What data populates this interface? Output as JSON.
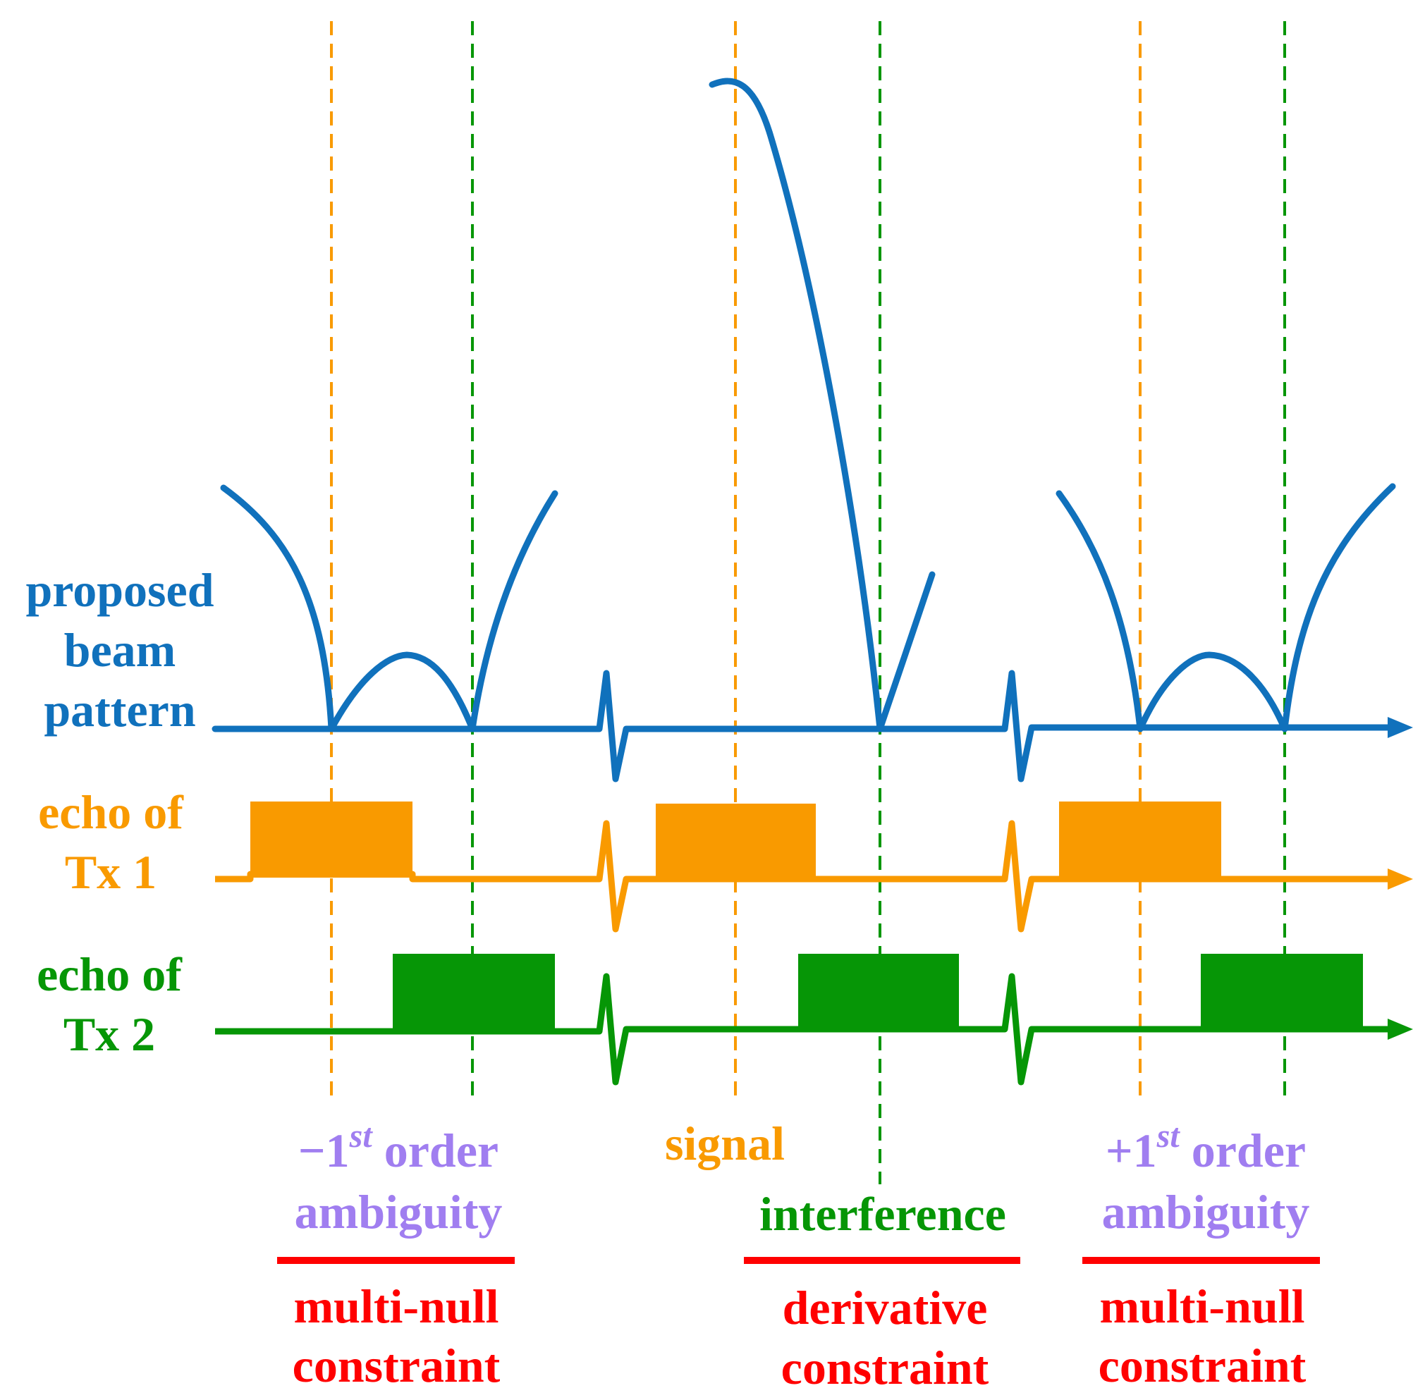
{
  "colors": {
    "beam": "#1071bc",
    "tx1": "#f99a00",
    "tx2": "#069606",
    "ambiguity": "#a07ef0",
    "constraint": "#ff0000",
    "background": "#ffffff"
  },
  "rows": {
    "beam_label": [
      "proposed",
      "beam",
      "pattern"
    ],
    "tx1_label": [
      "echo of",
      "Tx 1"
    ],
    "tx2_label": [
      "echo of",
      "Tx 2"
    ]
  },
  "regions": {
    "left": {
      "sign": "−1",
      "superscript": "st",
      "word": " order",
      "line2": "ambiguity",
      "constraint": [
        "multi-null",
        "constraint"
      ]
    },
    "center": {
      "signal": "signal",
      "interference": "interference",
      "constraint": [
        "derivative",
        "constraint"
      ]
    },
    "right": {
      "sign": "+1",
      "superscript": "st",
      "word": " order",
      "line2": "ambiguity",
      "constraint": [
        "multi-null",
        "constraint"
      ]
    }
  }
}
